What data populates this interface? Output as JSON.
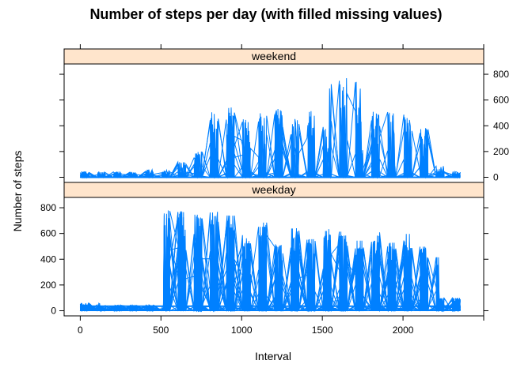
{
  "chart_data": {
    "type": "line",
    "title": "Number of steps per day (with filled missing values)",
    "xlabel": "Interval",
    "ylabel": "Number of steps",
    "xlim": [
      -100,
      2500
    ],
    "ylim": [
      -40,
      880
    ],
    "x_ticks": [
      0,
      500,
      1000,
      1500,
      2000
    ],
    "y_ticks": [
      0,
      200,
      400,
      600,
      800
    ],
    "interval_range": [
      0,
      2355
    ],
    "panels": [
      {
        "name": "weekend",
        "y_axis_side": "right",
        "color": "#0080ff",
        "baseline_fill_value": 0,
        "bursts": [
          {
            "x": [
              0,
              80
            ],
            "peak": 40
          },
          {
            "x": [
              150,
              320
            ],
            "peak": 30
          },
          {
            "x": [
              400,
              560
            ],
            "peak": 60
          },
          {
            "x": [
              580,
              700
            ],
            "peak": 120
          },
          {
            "x": [
              700,
              790
            ],
            "peak": 200
          },
          {
            "x": [
              800,
              960
            ],
            "peak": 550
          },
          {
            "x": [
              880,
              980
            ],
            "peak": 520
          },
          {
            "x": [
              1000,
              1120
            ],
            "peak": 450
          },
          {
            "x": [
              1100,
              1250
            ],
            "peak": 550
          },
          {
            "x": [
              1200,
              1320
            ],
            "peak": 540
          },
          {
            "x": [
              1250,
              1400
            ],
            "peak": 480
          },
          {
            "x": [
              1380,
              1500
            ],
            "peak": 540
          },
          {
            "x": [
              1480,
              1560
            ],
            "peak": 400
          },
          {
            "x": [
              1540,
              1640
            ],
            "peak": 800
          },
          {
            "x": [
              1640,
              1740
            ],
            "peak": 770
          },
          {
            "x": [
              1700,
              1820
            ],
            "peak": 480
          },
          {
            "x": [
              1800,
              1900
            ],
            "peak": 520
          },
          {
            "x": [
              1900,
              2040
            ],
            "peak": 530
          },
          {
            "x": [
              2040,
              2160
            ],
            "peak": 400
          },
          {
            "x": [
              2160,
              2300
            ],
            "peak": 90
          },
          {
            "x": [
              2280,
              2355
            ],
            "peak": 30
          }
        ]
      },
      {
        "name": "weekday",
        "y_axis_side": "left",
        "color": "#0080ff",
        "baseline_fill_value": 35,
        "bursts": [
          {
            "x": [
              0,
              120
            ],
            "peak": 60
          },
          {
            "x": [
              200,
              480
            ],
            "peak": 40
          },
          {
            "x": [
              520,
              600
            ],
            "peak": 780
          },
          {
            "x": [
              600,
              700
            ],
            "peak": 780
          },
          {
            "x": [
              700,
              780
            ],
            "peak": 760
          },
          {
            "x": [
              780,
              880
            ],
            "peak": 790
          },
          {
            "x": [
              880,
              960
            ],
            "peak": 760
          },
          {
            "x": [
              960,
              1060
            ],
            "peak": 600
          },
          {
            "x": [
              1060,
              1160
            ],
            "peak": 690
          },
          {
            "x": [
              1160,
              1260
            ],
            "peak": 520
          },
          {
            "x": [
              1260,
              1360
            ],
            "peak": 650
          },
          {
            "x": [
              1360,
              1460
            ],
            "peak": 560
          },
          {
            "x": [
              1460,
              1560
            ],
            "peak": 640
          },
          {
            "x": [
              1560,
              1660
            ],
            "peak": 620
          },
          {
            "x": [
              1660,
              1760
            ],
            "peak": 560
          },
          {
            "x": [
              1760,
              1860
            ],
            "peak": 630
          },
          {
            "x": [
              1860,
              1960
            ],
            "peak": 540
          },
          {
            "x": [
              1960,
              2040
            ],
            "peak": 610
          },
          {
            "x": [
              2040,
              2140
            ],
            "peak": 500
          },
          {
            "x": [
              2140,
              2220
            ],
            "peak": 420
          },
          {
            "x": [
              2220,
              2355
            ],
            "peak": 100
          }
        ]
      }
    ],
    "grid": false,
    "legend": "none"
  }
}
